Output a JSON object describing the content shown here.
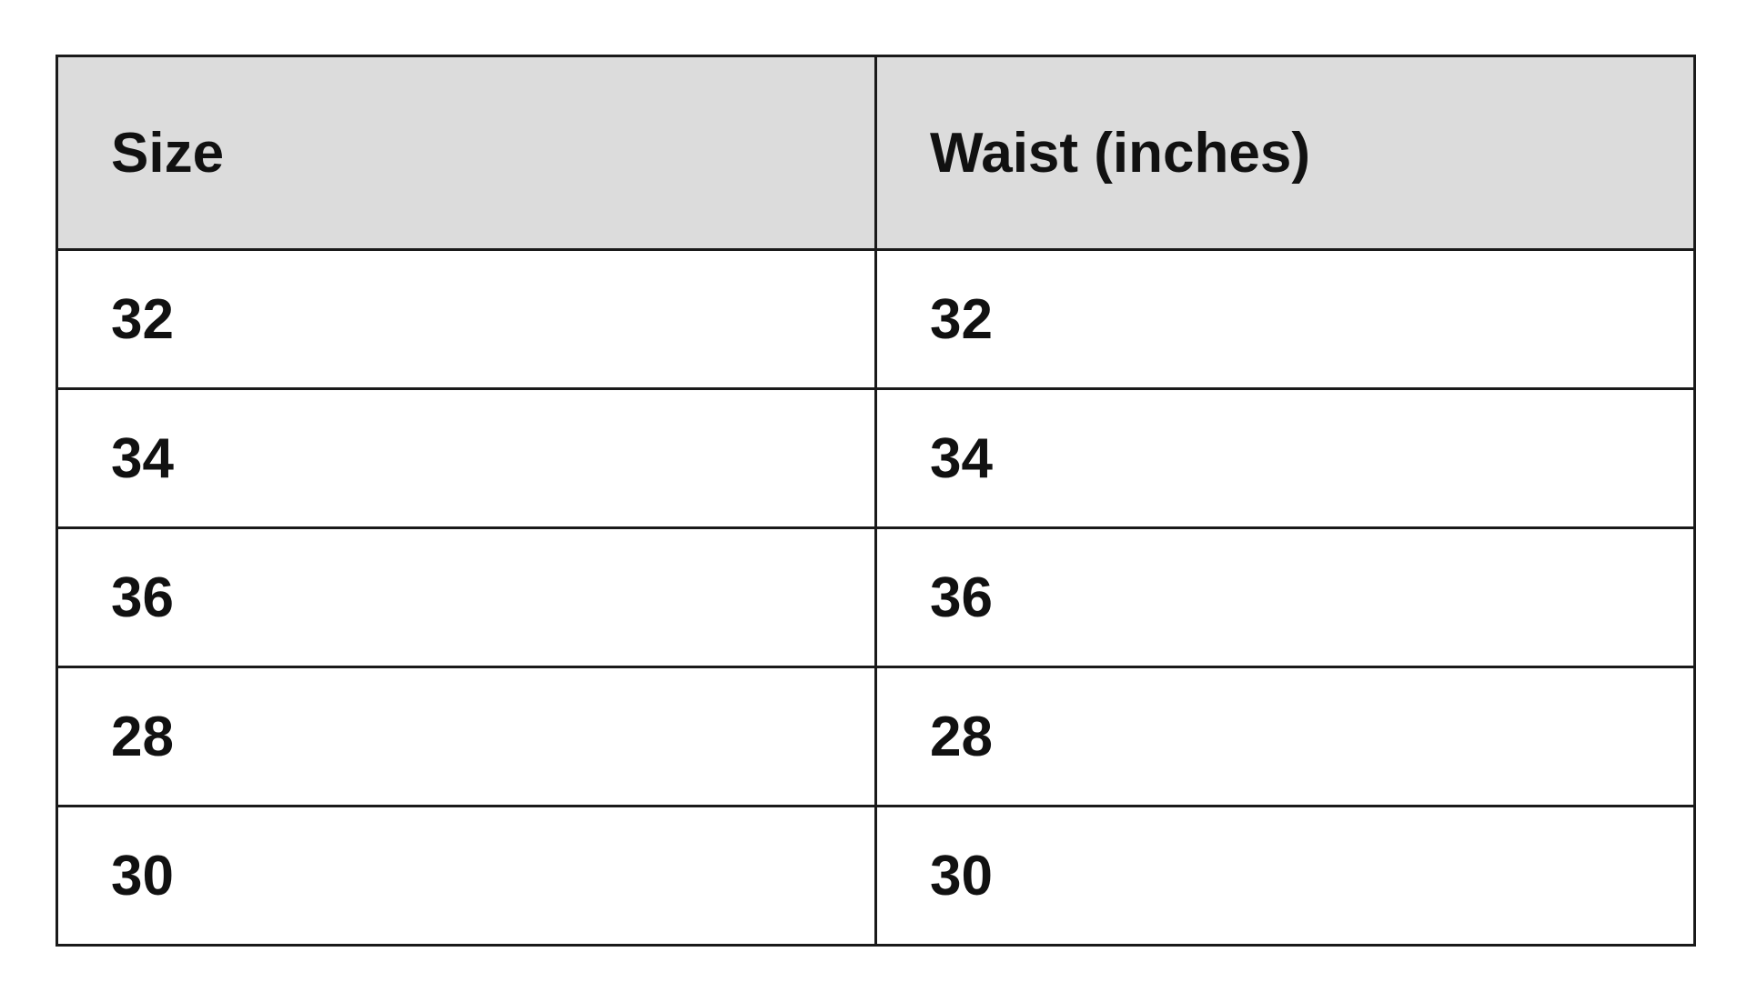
{
  "table": {
    "headers": [
      "Size",
      "Waist (inches)"
    ],
    "rows": [
      [
        "32",
        "32"
      ],
      [
        "34",
        "34"
      ],
      [
        "36",
        "36"
      ],
      [
        "28",
        "28"
      ],
      [
        "30",
        "30"
      ]
    ],
    "header_bg": "#dcdcdc",
    "border_color": "#1a1a1a"
  }
}
